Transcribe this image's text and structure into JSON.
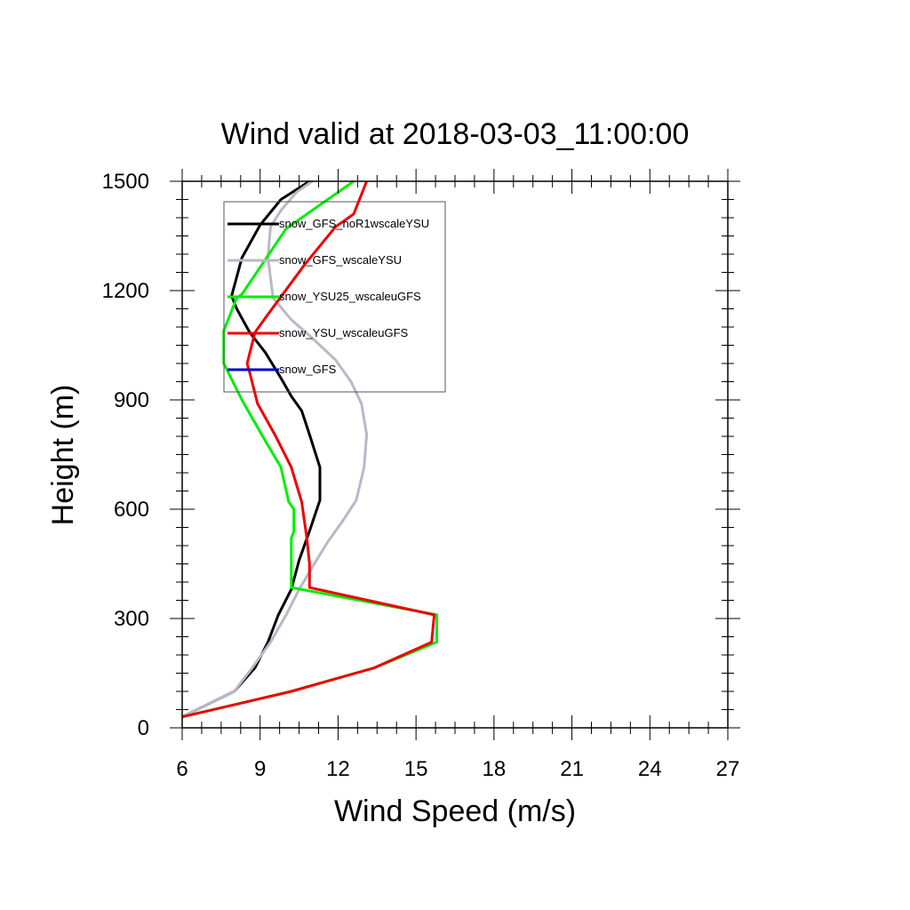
{
  "chart_data": {
    "type": "line",
    "title": "Wind valid at 2018-03-03_11:00:00",
    "xlabel": "Wind Speed (m/s)",
    "ylabel": "Height (m)",
    "xlim": [
      6,
      27
    ],
    "ylim": [
      0,
      1500
    ],
    "x_ticks": [
      6,
      9,
      12,
      15,
      18,
      21,
      24,
      27
    ],
    "y_ticks": [
      0,
      300,
      600,
      900,
      1200,
      1500
    ],
    "x_tick_labels": [
      "6",
      "9",
      "12",
      "15",
      "18",
      "21",
      "24",
      "27"
    ],
    "y_tick_labels": [
      "0",
      "300",
      "600",
      "900",
      "1200",
      "1500"
    ],
    "grid": false,
    "legend_position": "top-left",
    "series": [
      {
        "name": "snow_GFS_noR1wscaleYSU",
        "color": "#000000",
        "x": [
          6.0,
          8.0,
          8.8,
          9.3,
          9.7,
          10.2,
          10.5,
          10.9,
          11.3,
          11.3,
          10.9,
          10.6,
          10.2,
          9.8,
          9.2,
          8.6,
          8.1,
          7.9,
          8.3,
          9.0,
          9.8,
          10.9
        ],
        "y": [
          30,
          100,
          165,
          235,
          310,
          380,
          460,
          540,
          625,
          715,
          805,
          870,
          910,
          960,
          1030,
          1085,
          1150,
          1185,
          1290,
          1380,
          1450,
          1500
        ]
      },
      {
        "name": "snow_GFS_wscaleYSU",
        "color": "#b8b8c8",
        "x": [
          6.0,
          8.0,
          8.7,
          9.4,
          10.0,
          10.5,
          11.0,
          11.6,
          12.2,
          12.7,
          13.0,
          13.1,
          12.9,
          12.5,
          11.9,
          11.0,
          10.2,
          9.5,
          9.3,
          9.4,
          9.8,
          10.4,
          11.0
        ],
        "y": [
          30,
          100,
          165,
          235,
          310,
          380,
          440,
          510,
          570,
          625,
          715,
          805,
          890,
          950,
          1010,
          1070,
          1120,
          1180,
          1290,
          1375,
          1420,
          1470,
          1500
        ]
      },
      {
        "name": "snow_YSU25_wscaleuGFS",
        "color": "#00ee00",
        "x": [
          6.0,
          10.2,
          13.4,
          15.8,
          15.8,
          10.2,
          10.2,
          10.2,
          10.3,
          10.3,
          10.1,
          9.8,
          9.1,
          8.3,
          7.6,
          7.6,
          8.1,
          8.3,
          10.0,
          12.6
        ],
        "y": [
          30,
          100,
          165,
          235,
          310,
          385,
          450,
          520,
          540,
          600,
          620,
          715,
          800,
          900,
          1000,
          1090,
          1180,
          1190,
          1370,
          1500
        ]
      },
      {
        "name": "snow_YSU_wscaleuGFS",
        "color": "#ee0000",
        "x": [
          6.0,
          10.2,
          13.4,
          15.6,
          15.7,
          10.9,
          10.9,
          10.8,
          10.6,
          10.2,
          9.6,
          8.9,
          8.6,
          8.5,
          8.8,
          9.2,
          10.7,
          11.9,
          12.6,
          13.1
        ],
        "y": [
          30,
          100,
          165,
          235,
          310,
          385,
          450,
          520,
          620,
          715,
          800,
          890,
          975,
          1000,
          1085,
          1125,
          1270,
          1375,
          1410,
          1500
        ]
      },
      {
        "name": "snow_GFS",
        "color": "#0000cc",
        "x": [],
        "y": []
      }
    ]
  }
}
